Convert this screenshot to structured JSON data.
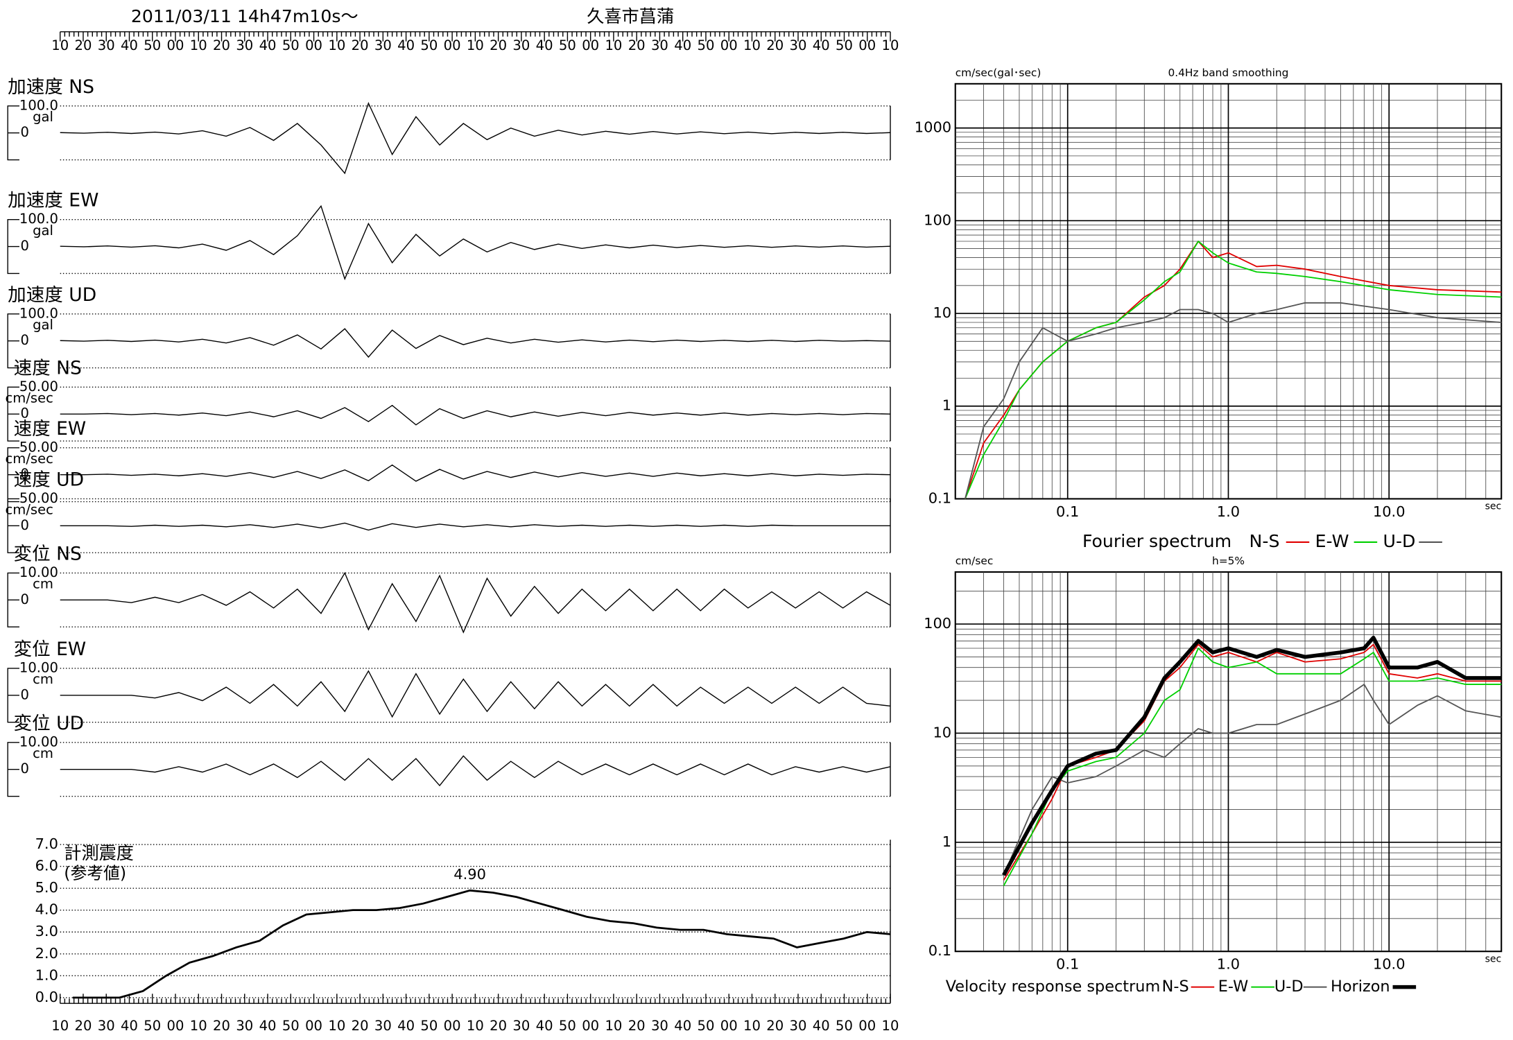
{
  "header": {
    "datetime": "2011/03/11  14h47m10s～",
    "station": "久喜市菖蒲"
  },
  "time_labels": [
    "10",
    "20",
    "30",
    "40",
    "50",
    "00",
    "10",
    "20",
    "30",
    "40",
    "50",
    "00",
    "10",
    "20",
    "30",
    "40",
    "50",
    "00",
    "10",
    "20",
    "30",
    "40",
    "50",
    "00",
    "10",
    "20",
    "30",
    "40",
    "50",
    "00",
    "10",
    "20",
    "30",
    "40",
    "50",
    "00",
    "10"
  ],
  "traces": [
    {
      "label": "加速度 NS",
      "scale": {
        "value": 100,
        "label": "100.0"
      },
      "unit": "gal",
      "zero": 0,
      "values": [
        1,
        -1,
        2,
        -2,
        3,
        -4,
        8,
        -12,
        20,
        -28,
        35,
        -45,
        -150,
        110,
        -80,
        60,
        -45,
        35,
        -25,
        18,
        -12,
        10,
        -8,
        6,
        -5,
        5,
        -4,
        4,
        -3,
        3,
        -3,
        2,
        -2,
        2,
        -2,
        1
      ]
    },
    {
      "label": "加速度 EW",
      "scale": {
        "value": 100,
        "label": "100.0"
      },
      "unit": "gal",
      "zero": 0,
      "values": [
        1,
        -1,
        2,
        -2,
        3,
        -5,
        9,
        -14,
        22,
        -30,
        40,
        150,
        -120,
        85,
        -60,
        45,
        -35,
        28,
        -20,
        15,
        -11,
        9,
        -7,
        6,
        -5,
        5,
        -4,
        4,
        -3,
        3,
        -3,
        2,
        -2,
        2,
        -2,
        1
      ]
    },
    {
      "label": "加速度 UD",
      "scale": {
        "value": 100,
        "label": "100.0"
      },
      "unit": "gal",
      "zero": 0,
      "values": [
        1,
        -1,
        2,
        -2,
        3,
        -4,
        6,
        -8,
        12,
        -16,
        22,
        -30,
        45,
        -60,
        40,
        -28,
        20,
        -14,
        10,
        -8,
        6,
        -5,
        4,
        -4,
        3,
        -3,
        3,
        -2,
        2,
        -2,
        2,
        -2,
        2,
        -1,
        1,
        -1
      ]
    },
    {
      "label": "速度 NS",
      "scale": {
        "value": 50.0,
        "label": "50.00"
      },
      "unit": "cm/sec",
      "zero": 0,
      "values": [
        0,
        0,
        1,
        -1,
        1,
        -2,
        2,
        -3,
        4,
        -5,
        6,
        -8,
        12,
        -14,
        16,
        -20,
        10,
        -8,
        6,
        -5,
        4,
        -4,
        3,
        -3,
        3,
        -2,
        2,
        -2,
        2,
        -2,
        1,
        -1,
        1,
        -1,
        1,
        0
      ]
    },
    {
      "label": "速度 EW",
      "scale": {
        "value": 50.0,
        "label": "50.00"
      },
      "unit": "cm/sec",
      "zero": 0,
      "values": [
        0,
        0,
        1,
        -1,
        1,
        -2,
        2,
        -3,
        4,
        -5,
        6,
        -7,
        9,
        -11,
        18,
        -12,
        10,
        -8,
        6,
        -5,
        5,
        -4,
        4,
        -3,
        3,
        -3,
        3,
        -2,
        2,
        -2,
        2,
        -2,
        1,
        -1,
        1,
        0
      ]
    },
    {
      "label": "速度 UD",
      "scale": {
        "value": 50.0,
        "label": "50.00"
      },
      "unit": "cm/sec",
      "zero": 0,
      "values": [
        0,
        0,
        0,
        -1,
        1,
        -1,
        1,
        -2,
        2,
        -3,
        3,
        -4,
        5,
        -8,
        4,
        -3,
        3,
        -2,
        2,
        -2,
        2,
        -1,
        1,
        -1,
        1,
        -1,
        1,
        -1,
        1,
        -1,
        1,
        0,
        0,
        0,
        0,
        0
      ]
    },
    {
      "label": "変位 NS",
      "scale": {
        "value": 10.0,
        "label": "10.00"
      },
      "unit": "cm",
      "zero": 0,
      "values": [
        0,
        0,
        0,
        -1,
        1,
        -1,
        2,
        -2,
        3,
        -3,
        4,
        -5,
        10,
        -11,
        6,
        -8,
        9,
        -12,
        8,
        -6,
        5,
        -5,
        4,
        -4,
        4,
        -4,
        4,
        -4,
        4,
        -3,
        3,
        -3,
        3,
        -3,
        3,
        -2
      ]
    },
    {
      "label": "変位 EW",
      "scale": {
        "value": 10.0,
        "label": "10.00"
      },
      "unit": "cm",
      "zero": 0,
      "values": [
        0,
        0,
        0,
        0,
        -1,
        1,
        -2,
        3,
        -3,
        4,
        -4,
        5,
        -6,
        9,
        -8,
        8,
        -7,
        6,
        -6,
        5,
        -5,
        5,
        -4,
        4,
        -4,
        4,
        -4,
        3,
        -3,
        3,
        -3,
        3,
        -3,
        3,
        -3,
        -4
      ]
    },
    {
      "label": "変位 UD",
      "scale": {
        "value": 10.0,
        "label": "10.00"
      },
      "unit": "cm",
      "zero": 0,
      "values": [
        0,
        0,
        0,
        0,
        -1,
        1,
        -1,
        2,
        -2,
        2,
        -3,
        3,
        -4,
        4,
        -4,
        4,
        -6,
        5,
        -4,
        3,
        -3,
        3,
        -2,
        2,
        -2,
        2,
        -2,
        2,
        -2,
        2,
        -2,
        1,
        -1,
        1,
        -1,
        1
      ]
    }
  ],
  "chart_data": [
    {
      "type": "line",
      "title": "計測震度",
      "subtitle": "(参考値)",
      "ylim": [
        0,
        7
      ],
      "yticks": [
        {
          "value": 0,
          "label": "0.0"
        },
        {
          "value": 1,
          "label": "1.0"
        },
        {
          "value": 2,
          "label": "2.0"
        },
        {
          "value": 3,
          "label": "3.0"
        },
        {
          "value": 4,
          "label": "4.0"
        },
        {
          "value": 5,
          "label": "5.0"
        },
        {
          "value": 6,
          "label": "6.0"
        },
        {
          "value": 7,
          "label": "7.0"
        }
      ],
      "values": [
        0,
        0,
        0,
        0.3,
        1.0,
        1.6,
        1.9,
        2.3,
        2.6,
        3.3,
        3.8,
        3.9,
        4.0,
        4.0,
        4.1,
        4.3,
        4.6,
        4.9,
        4.8,
        4.6,
        4.3,
        4.0,
        3.7,
        3.5,
        3.4,
        3.2,
        3.1,
        3.1,
        2.9,
        2.8,
        2.7,
        2.3,
        2.5,
        2.7,
        3.0,
        2.9
      ],
      "peak_label": "4.90",
      "color": "#000000",
      "grid": true
    },
    {
      "type": "line",
      "title": "0.4Hz band smoothing",
      "y_label": "cm/sec(gal･sec)",
      "x_unit": "sec",
      "legend_title": "Fourier spectrum",
      "log_x": true,
      "log_y": true,
      "grid": true,
      "xlim": [
        0.02,
        50
      ],
      "xticks": [
        0.1,
        {
          "value": 1,
          "label": "1.0"
        },
        {
          "value": 10,
          "label": "10.0"
        }
      ],
      "ylim": [
        0.1,
        3000
      ],
      "yticks": [
        0.1,
        1,
        10,
        100,
        1000
      ],
      "x": [
        0.023,
        0.03,
        0.04,
        0.05,
        0.07,
        0.1,
        0.15,
        0.2,
        0.3,
        0.4,
        0.5,
        0.65,
        0.8,
        1.0,
        1.5,
        2,
        3,
        5,
        10,
        20,
        50
      ],
      "series": [
        {
          "name": "N-S",
          "color": "#e00000",
          "values": [
            0.1,
            0.4,
            0.8,
            1.5,
            3,
            5,
            7,
            8,
            15,
            20,
            30,
            60,
            40,
            45,
            32,
            33,
            30,
            25,
            20,
            18,
            17
          ]
        },
        {
          "name": "E-W",
          "color": "#00d000",
          "values": [
            0.1,
            0.3,
            0.7,
            1.5,
            3,
            5,
            7,
            8,
            14,
            22,
            28,
            60,
            45,
            35,
            28,
            27,
            25,
            22,
            18,
            16,
            15
          ]
        },
        {
          "name": "U-D",
          "color": "#555555",
          "values": [
            0.1,
            0.6,
            1.2,
            3,
            7,
            5,
            6,
            7,
            8,
            9,
            11,
            11,
            10,
            8,
            10,
            11,
            13,
            13,
            11,
            9,
            8
          ]
        }
      ]
    },
    {
      "type": "line",
      "title": "h=5%",
      "y_label": "cm/sec",
      "x_unit": "sec",
      "legend_title": "Velocity response spectrum",
      "log_x": true,
      "log_y": true,
      "grid": true,
      "xlim": [
        0.02,
        50
      ],
      "xticks": [
        0.1,
        {
          "value": 1,
          "label": "1.0"
        },
        {
          "value": 10,
          "label": "10.0"
        }
      ],
      "ylim": [
        0.1,
        300
      ],
      "yticks": [
        0.1,
        1,
        10,
        100
      ],
      "x": [
        0.04,
        0.06,
        0.08,
        0.1,
        0.15,
        0.2,
        0.3,
        0.4,
        0.5,
        0.65,
        0.8,
        1.0,
        1.5,
        2,
        3,
        5,
        7,
        8,
        10,
        15,
        20,
        30,
        50
      ],
      "series": [
        {
          "name": "N-S",
          "color": "#e00000",
          "values": [
            0.45,
            1.2,
            2.5,
            5,
            6,
            7,
            13,
            30,
            40,
            65,
            50,
            55,
            45,
            55,
            45,
            48,
            55,
            65,
            35,
            32,
            35,
            30,
            30
          ]
        },
        {
          "name": "E-W",
          "color": "#00d000",
          "values": [
            0.4,
            1.2,
            3,
            4.5,
            5.5,
            6,
            10,
            20,
            25,
            60,
            45,
            40,
            45,
            35,
            35,
            35,
            48,
            55,
            30,
            30,
            32,
            28,
            28
          ]
        },
        {
          "name": "U-D",
          "color": "#555555",
          "values": [
            0.5,
            2,
            4,
            3.5,
            4,
            5,
            7,
            6,
            8,
            11,
            10,
            10,
            12,
            12,
            15,
            20,
            28,
            20,
            12,
            18,
            22,
            16,
            14
          ]
        },
        {
          "name": "Horizon",
          "color": "#000000",
          "width": 4,
          "values": [
            0.5,
            1.5,
            3,
            5,
            6.5,
            7,
            14,
            32,
            45,
            70,
            55,
            60,
            50,
            58,
            50,
            55,
            60,
            75,
            40,
            40,
            45,
            32,
            32
          ]
        }
      ]
    }
  ]
}
